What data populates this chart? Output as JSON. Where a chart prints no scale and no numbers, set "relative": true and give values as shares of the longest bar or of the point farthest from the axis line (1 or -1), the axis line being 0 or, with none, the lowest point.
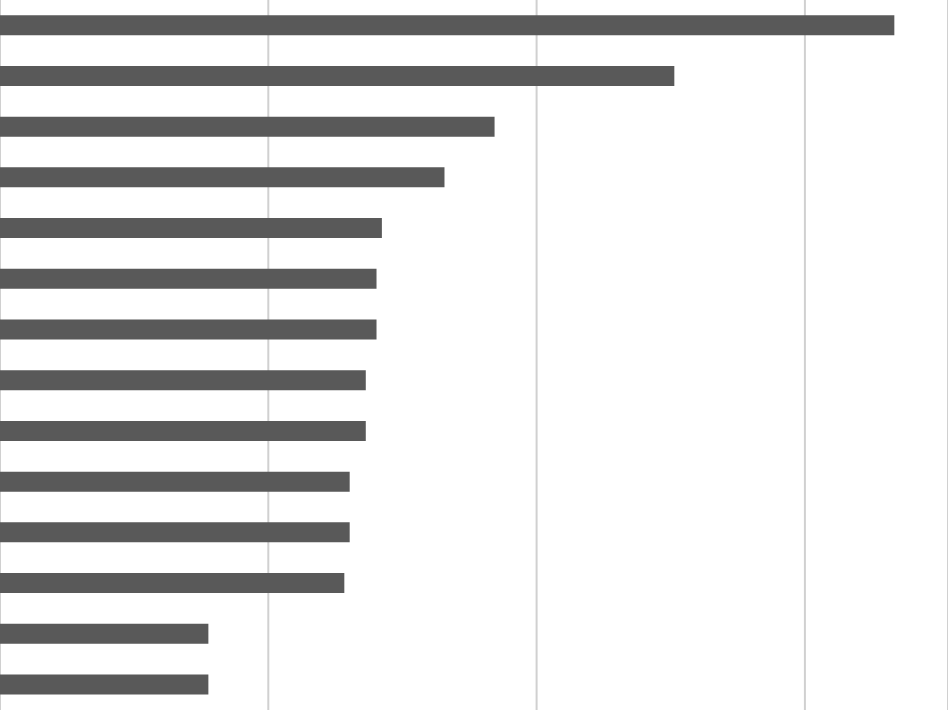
{
  "chart_data": {
    "type": "bar",
    "orientation": "horizontal",
    "relative": true,
    "categories": [
      null,
      null,
      null,
      null,
      null,
      null,
      null,
      null,
      null,
      null,
      null,
      null,
      null,
      null
    ],
    "values": [
      1,
      0.754,
      0.553,
      0.497,
      0.427,
      0.421,
      0.421,
      0.409,
      0.409,
      0.391,
      0.391,
      0.385,
      0.233,
      0.233
    ],
    "color": "#595959",
    "grid": "x",
    "tick_labels": false
  }
}
